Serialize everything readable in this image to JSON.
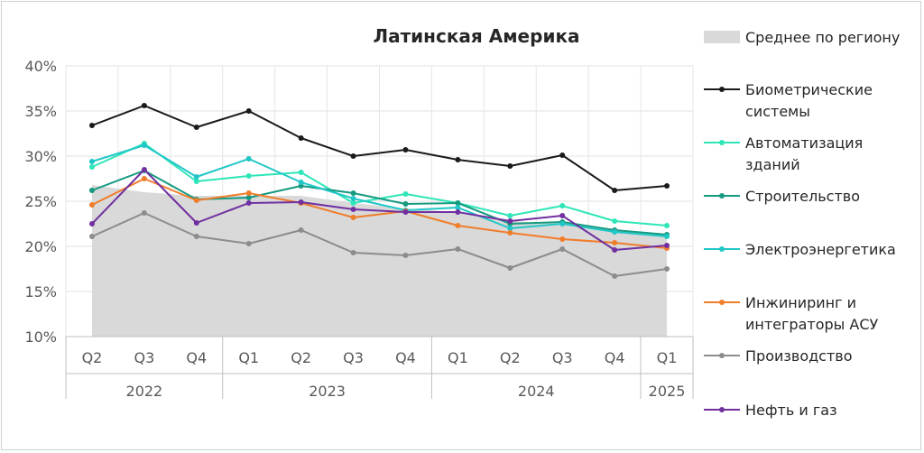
{
  "chart_data": {
    "type": "line",
    "title": "Латинская Америка",
    "xlabel": "",
    "ylabel": "",
    "ylim": [
      10,
      40
    ],
    "yticks": [
      "10%",
      "15%",
      "20%",
      "25%",
      "30%",
      "35%",
      "40%"
    ],
    "categories": [
      "Q2",
      "Q3",
      "Q4",
      "Q1",
      "Q2",
      "Q3",
      "Q4",
      "Q1",
      "Q2",
      "Q3",
      "Q4",
      "Q1"
    ],
    "years": [
      {
        "label": "2022",
        "start": 0,
        "end": 2
      },
      {
        "label": "2023",
        "start": 3,
        "end": 6
      },
      {
        "label": "2024",
        "start": 7,
        "end": 10
      },
      {
        "label": "2025",
        "start": 11,
        "end": 11
      }
    ],
    "grid": true,
    "legend_position": "right",
    "area": {
      "name": "Среднее по региону",
      "color": "#d9d9d9",
      "values": [
        26.8,
        26.0,
        25.6,
        25.6,
        25.6,
        24.8,
        24.2,
        23.8,
        22.8,
        22.5,
        21.8,
        21.2
      ]
    },
    "series": [
      {
        "name": "Биометрические системы",
        "color": "#1a1a1a",
        "values": [
          33.4,
          35.6,
          33.2,
          35.0,
          32.0,
          30.0,
          30.7,
          29.6,
          28.9,
          30.1,
          26.2,
          26.7
        ]
      },
      {
        "name": "Автоматизация зданий",
        "color": "#2ee6b8",
        "values": [
          28.8,
          31.4,
          27.2,
          27.8,
          28.2,
          24.8,
          25.8,
          24.8,
          23.4,
          24.5,
          22.8,
          22.3
        ]
      },
      {
        "name": "Строительство",
        "color": "#169a80",
        "values": [
          26.2,
          28.4,
          25.2,
          25.4,
          26.7,
          25.9,
          24.7,
          24.8,
          22.5,
          22.7,
          21.8,
          21.3
        ]
      },
      {
        "name": "Электроэнергетика",
        "color": "#21c7c7",
        "values": [
          29.4,
          31.2,
          27.7,
          29.7,
          27.1,
          25.3,
          24.0,
          24.3,
          22.0,
          22.5,
          21.6,
          21.1
        ]
      },
      {
        "name": "Инжиниринг и интеграторы АСУ",
        "color": "#f07d2a",
        "values": [
          24.6,
          27.5,
          25.1,
          25.9,
          24.8,
          23.2,
          23.9,
          22.3,
          21.5,
          20.8,
          20.4,
          19.8
        ]
      },
      {
        "name": "Производство",
        "color": "#8c8c8c",
        "values": [
          21.1,
          23.7,
          21.1,
          20.3,
          21.8,
          19.3,
          19.0,
          19.7,
          17.6,
          19.7,
          16.7,
          17.5
        ]
      },
      {
        "name": "Нефть и газ",
        "color": "#7030a0",
        "values": [
          22.5,
          28.5,
          22.6,
          24.8,
          24.9,
          24.1,
          23.8,
          23.8,
          22.8,
          23.4,
          19.6,
          20.1
        ]
      }
    ],
    "legend": {
      "area_label": "Среднее по региону",
      "items": [
        {
          "lines": [
            "Биометрические",
            "системы"
          ],
          "color": "#1a1a1a"
        },
        {
          "lines": [
            "Автоматизация",
            "зданий"
          ],
          "color": "#2ee6b8"
        },
        {
          "lines": [
            "Строительство"
          ],
          "color": "#169a80"
        },
        {
          "lines": [
            "Электроэнергетика"
          ],
          "color": "#21c7c7"
        },
        {
          "lines": [
            "Инжиниринг и",
            "интеграторы АСУ"
          ],
          "color": "#f07d2a"
        },
        {
          "lines": [
            "Производство"
          ],
          "color": "#8c8c8c"
        },
        {
          "lines": [
            "Нефть и газ"
          ],
          "color": "#7030a0"
        }
      ]
    }
  }
}
